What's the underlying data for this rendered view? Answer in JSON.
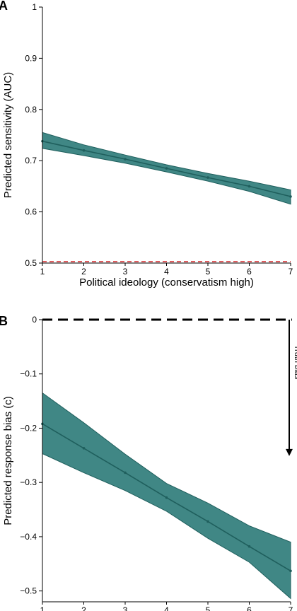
{
  "colors": {
    "band_fill": "#2b7a78",
    "line": "#1f5f5d",
    "reference_red": "#d62728",
    "reference_black": "#000000"
  },
  "chart_data": [
    {
      "type": "line",
      "panel": "A",
      "xlabel": "Political ideology (conservatism high)",
      "ylabel": "Predicted sensitivity (AUC)",
      "x": [
        1,
        2,
        3,
        4,
        5,
        6,
        7
      ],
      "xticks": [
        "1",
        "2",
        "3",
        "4",
        "5",
        "6",
        "7"
      ],
      "ylim": [
        0.5,
        1.0
      ],
      "yticks": [
        {
          "value": 0.5,
          "label": "0.5"
        },
        {
          "value": 0.6,
          "label": "0.6"
        },
        {
          "value": 0.7,
          "label": "0.7"
        },
        {
          "value": 0.8,
          "label": "0.8"
        },
        {
          "value": 0.9,
          "label": "0.9"
        },
        {
          "value": 1.0,
          "label": "1"
        }
      ],
      "series": [
        {
          "values": [
            0.738,
            0.72,
            0.703,
            0.685,
            0.667,
            0.65,
            0.63
          ],
          "lower": [
            0.724,
            0.71,
            0.695,
            0.678,
            0.66,
            0.64,
            0.615
          ],
          "upper": [
            0.755,
            0.731,
            0.711,
            0.692,
            0.675,
            0.66,
            0.643
          ]
        }
      ],
      "reference_line": {
        "y": 0.5,
        "style": "dashed",
        "color": "#d62728"
      },
      "grid": false
    },
    {
      "type": "line",
      "panel": "B",
      "xlabel": "Political ideology (conservatism high)",
      "ylabel": "Predicted response bias (c)",
      "x": [
        1,
        2,
        3,
        4,
        5,
        6,
        7
      ],
      "xticks": [
        "1",
        "2",
        "3",
        "4",
        "5",
        "6",
        "7"
      ],
      "ylim": [
        -0.52,
        0.0
      ],
      "yticks": [
        {
          "value": 0.0,
          "label": "0"
        },
        {
          "value": -0.1,
          "label": "−0.1"
        },
        {
          "value": -0.2,
          "label": "−0.2"
        },
        {
          "value": -0.3,
          "label": "−0.3"
        },
        {
          "value": -0.4,
          "label": "−0.4"
        },
        {
          "value": -0.5,
          "label": "−0.5"
        }
      ],
      "series": [
        {
          "values": [
            -0.192,
            -0.237,
            -0.282,
            -0.328,
            -0.372,
            -0.418,
            -0.463
          ],
          "lower": [
            -0.247,
            -0.282,
            -0.315,
            -0.353,
            -0.403,
            -0.447,
            -0.514
          ],
          "upper": [
            -0.135,
            -0.19,
            -0.248,
            -0.302,
            -0.338,
            -0.38,
            -0.41
          ]
        }
      ],
      "reference_line": {
        "y": 0.0,
        "style": "dashed",
        "color": "#000000"
      },
      "annotation": {
        "text": "Truth bias",
        "arrow_from": 0.0,
        "arrow_to": -0.25
      },
      "grid": false
    }
  ]
}
